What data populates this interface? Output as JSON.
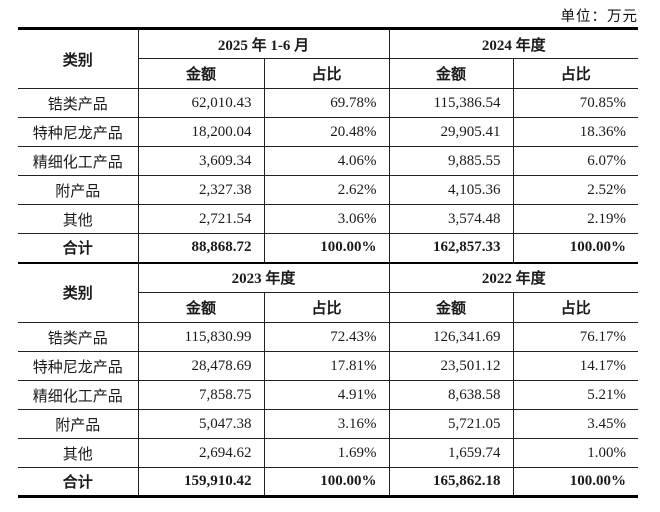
{
  "unit_label": "单位：万元",
  "colors": {
    "background": "#ffffff",
    "border": "#000000",
    "text": "#1a1a1a"
  },
  "tables": [
    {
      "category_header": "类别",
      "period_headers": [
        "2025 年 1-6 月",
        "2024 年度"
      ],
      "sub_headers": [
        "金额",
        "占比"
      ],
      "rows": [
        {
          "label": "锆类产品",
          "cells": [
            "62,010.43",
            "69.78%",
            "115,386.54",
            "70.85%"
          ],
          "bold": false
        },
        {
          "label": "特种尼龙产品",
          "cells": [
            "18,200.04",
            "20.48%",
            "29,905.41",
            "18.36%"
          ],
          "bold": false
        },
        {
          "label": "精细化工产品",
          "cells": [
            "3,609.34",
            "4.06%",
            "9,885.55",
            "6.07%"
          ],
          "bold": false
        },
        {
          "label": "附产品",
          "cells": [
            "2,327.38",
            "2.62%",
            "4,105.36",
            "2.52%"
          ],
          "bold": false
        },
        {
          "label": "其他",
          "cells": [
            "2,721.54",
            "3.06%",
            "3,574.48",
            "2.19%"
          ],
          "bold": false
        },
        {
          "label": "合计",
          "cells": [
            "88,868.72",
            "100.00%",
            "162,857.33",
            "100.00%"
          ],
          "bold": true
        }
      ]
    },
    {
      "category_header": "类别",
      "period_headers": [
        "2023 年度",
        "2022 年度"
      ],
      "sub_headers": [
        "金额",
        "占比"
      ],
      "rows": [
        {
          "label": "锆类产品",
          "cells": [
            "115,830.99",
            "72.43%",
            "126,341.69",
            "76.17%"
          ],
          "bold": false
        },
        {
          "label": "特种尼龙产品",
          "cells": [
            "28,478.69",
            "17.81%",
            "23,501.12",
            "14.17%"
          ],
          "bold": false
        },
        {
          "label": "精细化工产品",
          "cells": [
            "7,858.75",
            "4.91%",
            "8,638.58",
            "5.21%"
          ],
          "bold": false
        },
        {
          "label": "附产品",
          "cells": [
            "5,047.38",
            "3.16%",
            "5,721.05",
            "3.45%"
          ],
          "bold": false
        },
        {
          "label": "其他",
          "cells": [
            "2,694.62",
            "1.69%",
            "1,659.74",
            "1.00%"
          ],
          "bold": false
        },
        {
          "label": "合计",
          "cells": [
            "159,910.42",
            "100.00%",
            "165,862.18",
            "100.00%"
          ],
          "bold": true
        }
      ]
    }
  ]
}
